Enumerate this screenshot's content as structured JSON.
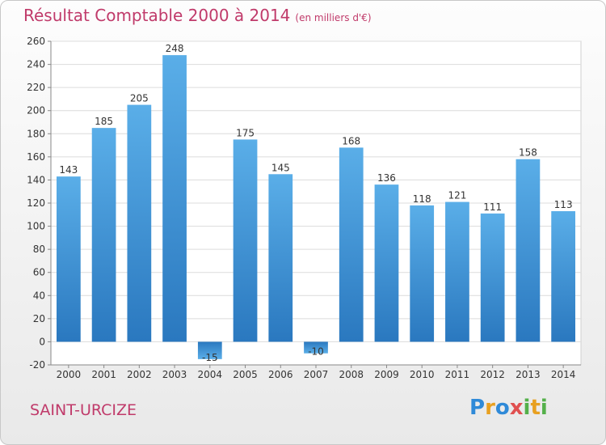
{
  "header": {
    "title": "Résultat Comptable 2000 à 2014",
    "subtitle": "(en milliers d'€)"
  },
  "place": "SAINT-URCIZE",
  "logo": {
    "letters": [
      "P",
      "r",
      "o",
      "x",
      "i",
      "t",
      "i"
    ]
  },
  "colors": {
    "bar_top": "#5aaee8",
    "bar_bottom": "#2a78bf",
    "title": "#c03a6a"
  },
  "chart_data": {
    "type": "bar",
    "title": "Résultat Comptable 2000 à 2014",
    "categories": [
      "2000",
      "2001",
      "2002",
      "2003",
      "2004",
      "2005",
      "2006",
      "2007",
      "2008",
      "2009",
      "2010",
      "2011",
      "2012",
      "2013",
      "2014"
    ],
    "values": [
      143,
      185,
      205,
      248,
      -15,
      175,
      145,
      -10,
      168,
      136,
      118,
      121,
      111,
      158,
      113
    ],
    "ylim": [
      -20,
      260
    ],
    "yticks": [
      -20,
      0,
      20,
      40,
      60,
      80,
      100,
      120,
      140,
      160,
      180,
      200,
      220,
      240,
      260
    ],
    "grid": true
  }
}
